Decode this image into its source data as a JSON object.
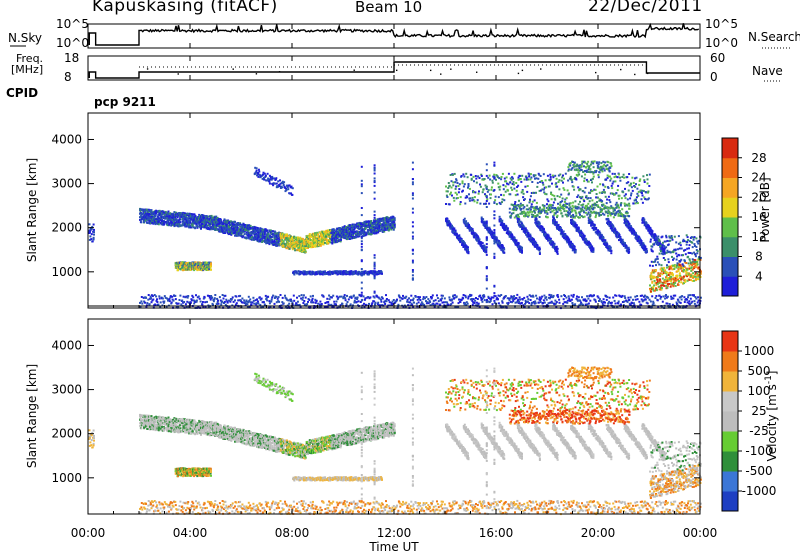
{
  "header": {
    "site": "Kapuskasing (fitACF)",
    "beam": "Beam 10",
    "date": "22/Dec/2011"
  },
  "strips": {
    "nsky_label": "N.Sky",
    "nsky_ticks": [
      "10^5",
      "10^0"
    ],
    "nsearch_label": "N.Search",
    "nsearch_ticks": [
      "10^5",
      "10^0"
    ],
    "freq_label_1": "Freq.",
    "freq_label_2": "[MHz]",
    "freq_ticks": [
      "18",
      "8"
    ],
    "nave_label": "Nave",
    "nave_ticks": [
      "60",
      "0"
    ],
    "cpid_label": "CPID",
    "cpid_value": "pcp 9211"
  },
  "chart_data": [
    {
      "type": "heatmap",
      "name": "power-panel",
      "ylabel": "Slant Range [km]",
      "yticks": [
        "1000",
        "2000",
        "3000",
        "4000"
      ],
      "ylim": [
        180,
        4600
      ],
      "colorbar": {
        "label": "Power [dB]",
        "ticks": [
          "4",
          "8",
          "12",
          "16",
          "20",
          "24",
          "28"
        ],
        "colors": [
          "#1f1fd8",
          "#2a50b8",
          "#3b8f6a",
          "#5fbf4a",
          "#e6d21e",
          "#f5a623",
          "#ef6a13",
          "#d82a10"
        ]
      }
    },
    {
      "type": "heatmap",
      "name": "velocity-panel",
      "ylabel": "Slant Range [km]",
      "yticks": [
        "1000",
        "2000",
        "3000",
        "4000"
      ],
      "ylim": [
        180,
        4600
      ],
      "colorbar": {
        "label": "Velocity [m s^-1]",
        "ticks": [
          "1000",
          "500",
          "100",
          "25",
          "-25",
          "-100",
          "-500",
          "-1000"
        ],
        "colors": [
          "#1e3fc2",
          "#3b76d6",
          "#2f8f3a",
          "#66cc33",
          "#bdbdbd",
          "#c8c8c8",
          "#f0b43a",
          "#ef7a1a",
          "#e83515"
        ]
      }
    }
  ],
  "time_axis": {
    "xlabel": "Time UT",
    "xticks": [
      "00:00",
      "04:00",
      "08:00",
      "12:00",
      "16:00",
      "20:00",
      "00:00"
    ]
  }
}
